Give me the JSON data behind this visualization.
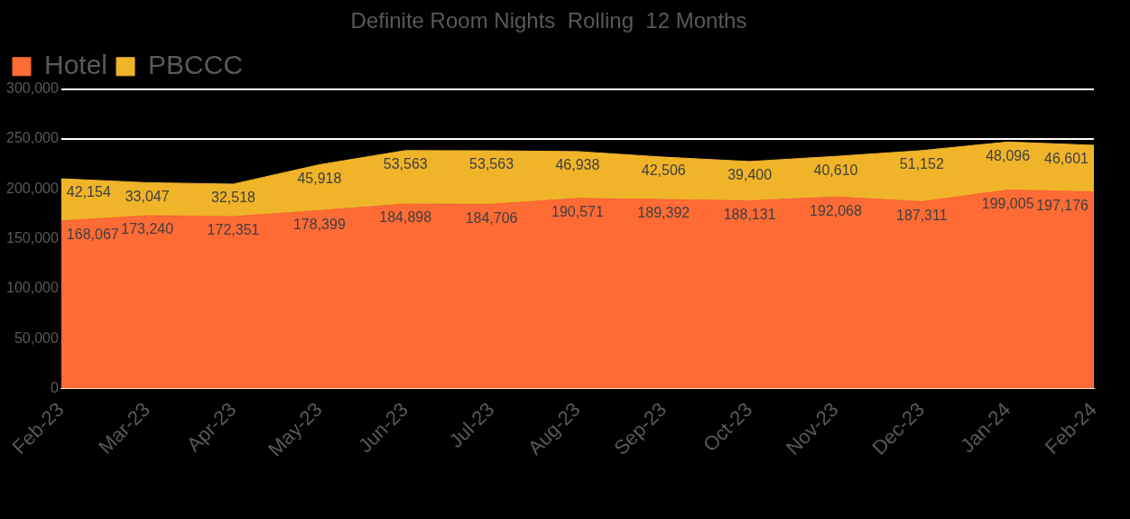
{
  "chart_data": {
    "type": "area",
    "title": "Definite Room Nights  Rolling  12 Months",
    "stacked": true,
    "categories": [
      "Feb-23",
      "Mar-23",
      "Apr-23",
      "May-23",
      "Jun-23",
      "Jul-23",
      "Aug-23",
      "Sep-23",
      "Oct-23",
      "Nov-23",
      "Dec-23",
      "Jan-24",
      "Feb-24"
    ],
    "series": [
      {
        "name": "Hotel",
        "color": "#ff6b35",
        "values": [
          168067,
          173240,
          172351,
          178399,
          184898,
          184706,
          190571,
          189392,
          188131,
          192068,
          187311,
          199005,
          197176
        ],
        "value_labels": [
          "168,067",
          "173,240",
          "172,351",
          "178,399",
          "184,898",
          "184,706",
          "190,571",
          "189,392",
          "188,131",
          "192,068",
          "187,311",
          "199,005",
          "197,176"
        ]
      },
      {
        "name": "PBCCC",
        "color": "#f0b429",
        "values": [
          42154,
          33047,
          32518,
          45918,
          53563,
          53563,
          46938,
          42506,
          39400,
          40610,
          51152,
          48096,
          46601
        ],
        "value_labels": [
          "42,154",
          "33,047",
          "32,518",
          "45,918",
          "53,563",
          "53,563",
          "46,938",
          "42,506",
          "39,400",
          "40,610",
          "51,152",
          "48,096",
          "46,601"
        ]
      }
    ],
    "ylim": [
      0,
      300000
    ],
    "yticks": [
      {
        "value": 0,
        "label": "0"
      },
      {
        "value": 50000,
        "label": "50,000"
      },
      {
        "value": 100000,
        "label": "100,000"
      },
      {
        "value": 150000,
        "label": "150,000"
      },
      {
        "value": 200000,
        "label": "200,000"
      },
      {
        "value": 250000,
        "label": "250,000"
      },
      {
        "value": 300000,
        "label": "300,000"
      }
    ],
    "grid": "y",
    "legend": "top"
  }
}
